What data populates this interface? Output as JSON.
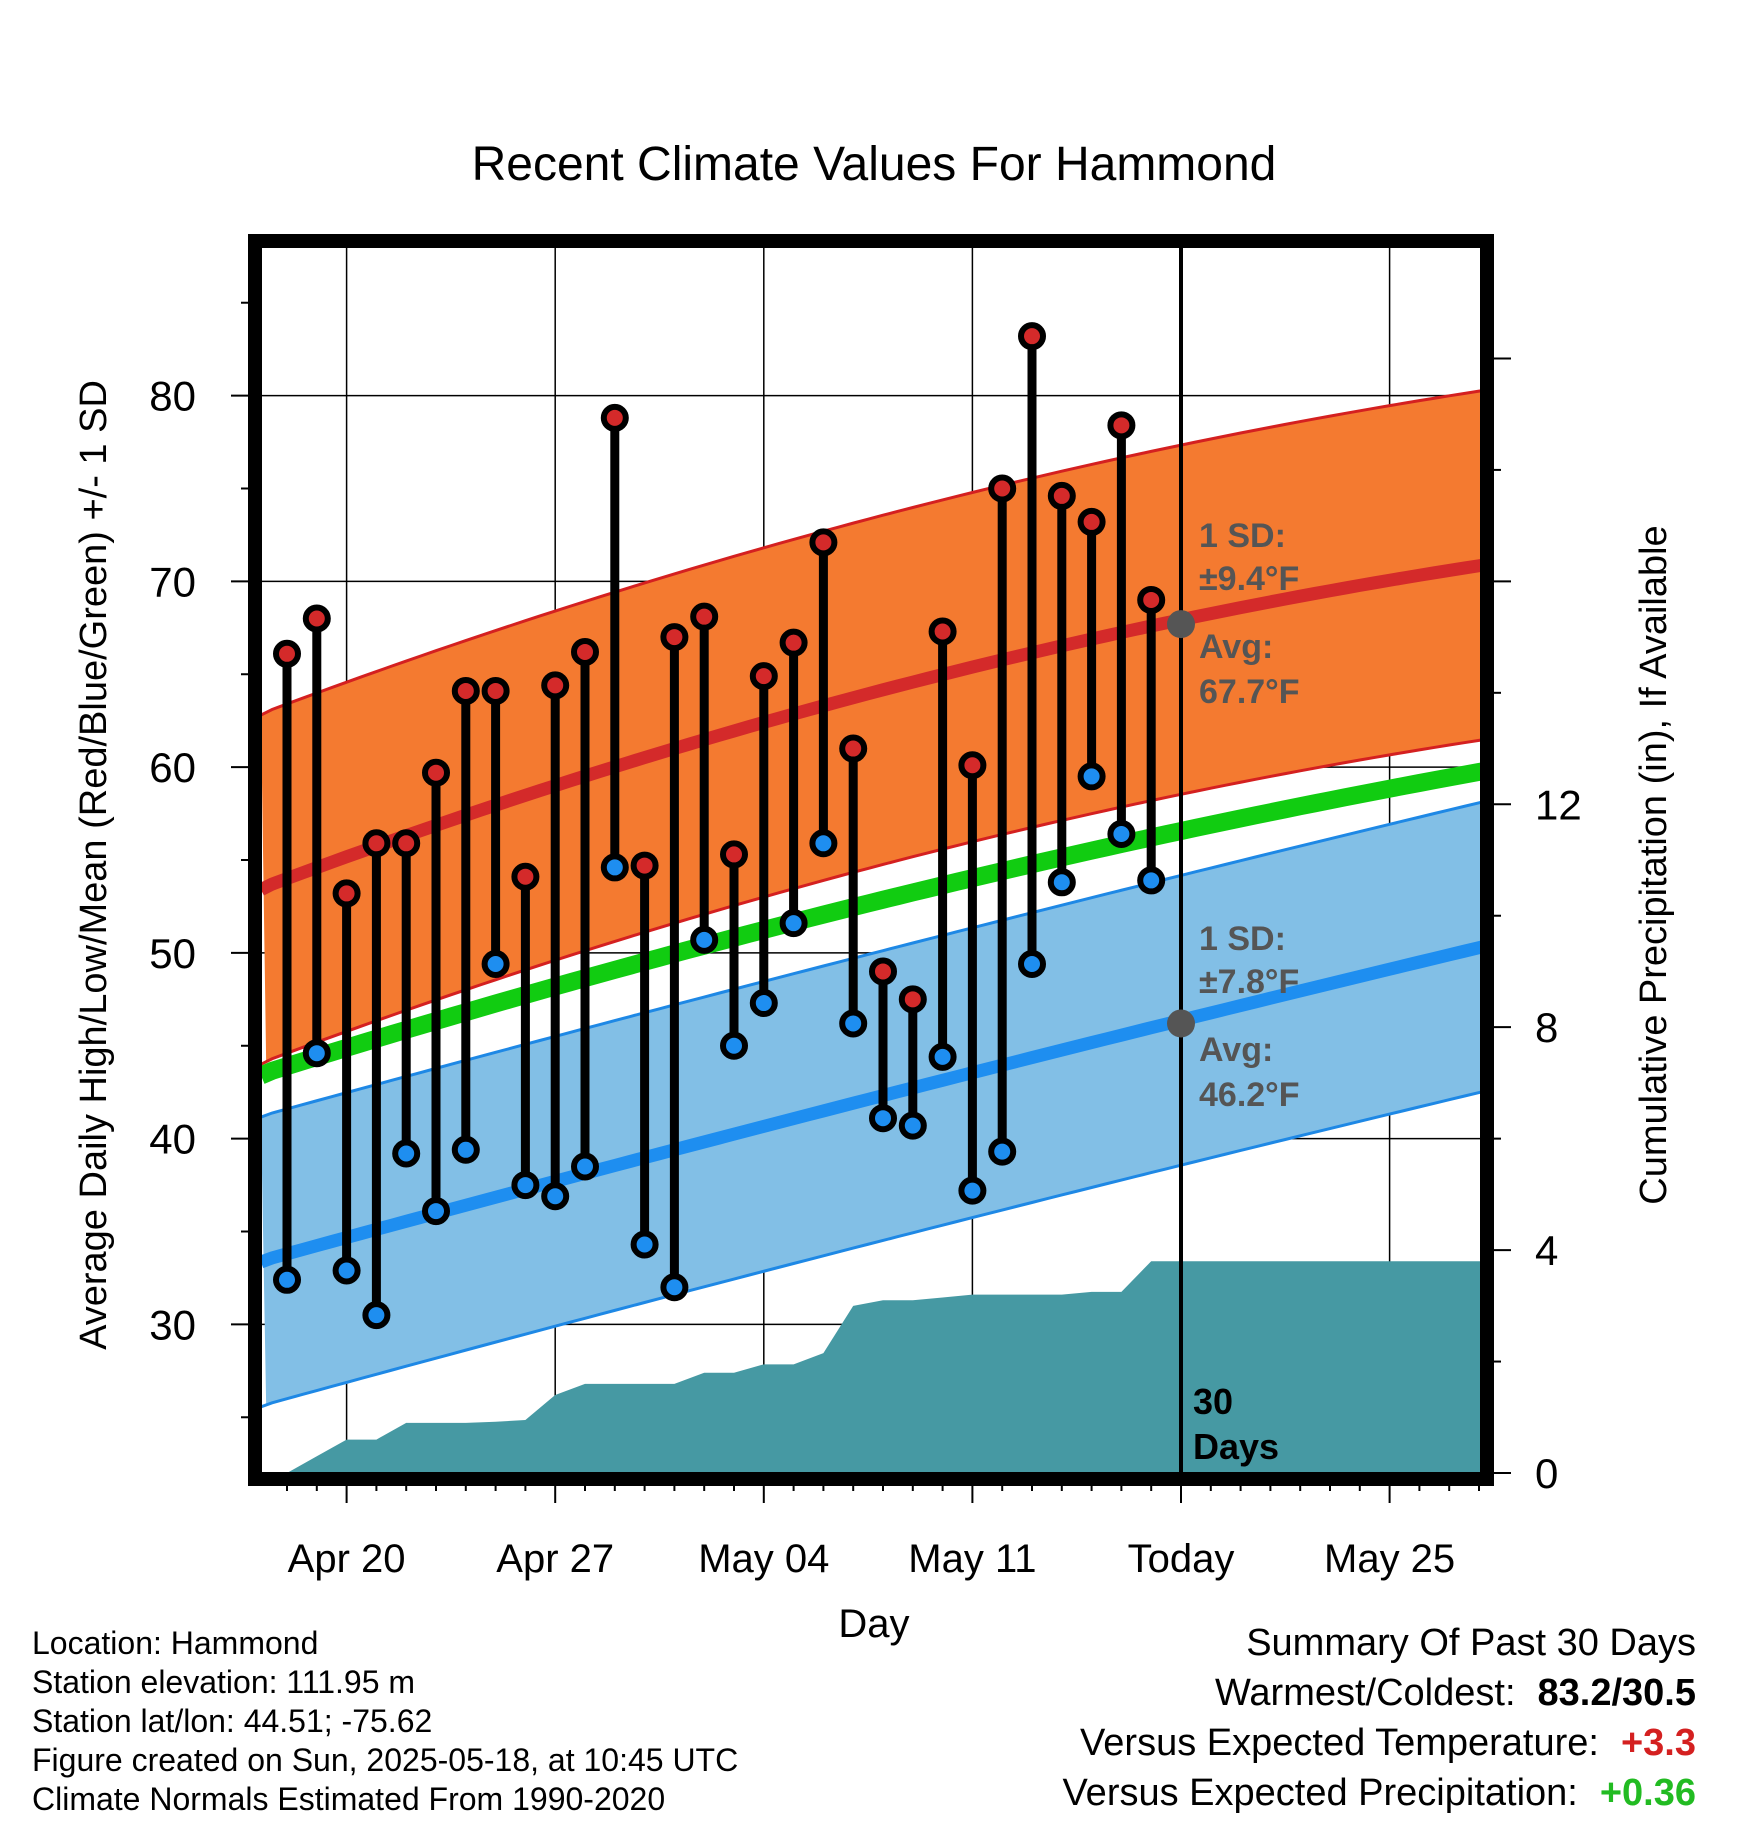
{
  "chart_data": {
    "type": "line",
    "title": "Recent Climate Values For Hammond",
    "xlabel": "Day",
    "ylabel": "Average Daily High/Low/Mean (Red/Blue/Green) +/- 1 SD",
    "y2label": "Cumulative Precipitation (in), If Available",
    "ylim": [
      22,
      88
    ],
    "y2lim": [
      0,
      22
    ],
    "yticks": [
      30,
      40,
      50,
      60,
      70,
      80
    ],
    "y2ticks": [
      0,
      4,
      8,
      12
    ],
    "x_tick_labels": [
      "Apr 20",
      "Apr 27",
      "May 04",
      "May 11",
      "Today",
      "May 25"
    ],
    "grid": true,
    "today_marker_label": "30 Days",
    "normal_high": {
      "avg_label": "Avg:",
      "avg_value": "67.7°F",
      "sd_label": "1 SD:",
      "sd_value": "±9.4°F",
      "avg": 67.7,
      "sd": 9.4
    },
    "normal_low": {
      "avg_label": "Avg:",
      "avg_value": "46.2°F",
      "sd_label": "1 SD:",
      "sd_value": "±7.8°F",
      "avg": 46.2,
      "sd": 7.8
    },
    "series": [
      {
        "name": "Daily High",
        "values": [
          66.1,
          68.0,
          53.2,
          55.9,
          55.9,
          59.7,
          64.1,
          64.1,
          54.1,
          64.4,
          66.2,
          78.8,
          54.7,
          67.0,
          68.1,
          55.3,
          64.9,
          66.7,
          72.1,
          61.0,
          49.0,
          47.5,
          67.3,
          60.1,
          75.0,
          83.2,
          74.6,
          73.2,
          78.4,
          69.0
        ]
      },
      {
        "name": "Daily Low",
        "values": [
          32.4,
          44.6,
          32.9,
          30.5,
          39.2,
          36.1,
          39.4,
          49.4,
          37.5,
          36.9,
          38.5,
          54.6,
          34.3,
          32.0,
          50.7,
          45.0,
          47.3,
          51.6,
          55.9,
          46.2,
          41.1,
          40.7,
          44.4,
          37.2,
          39.3,
          49.4,
          53.8,
          59.5,
          56.4,
          53.9
        ]
      },
      {
        "name": "Cumulative Precipitation",
        "values": [
          0.0,
          0.3,
          0.6,
          0.6,
          0.9,
          0.9,
          0.9,
          0.92,
          0.95,
          1.4,
          1.6,
          1.6,
          1.6,
          1.6,
          1.8,
          1.8,
          1.95,
          1.95,
          2.15,
          3.0,
          3.1,
          3.1,
          3.15,
          3.2,
          3.2,
          3.2,
          3.2,
          3.25,
          3.25,
          3.8,
          3.8
        ]
      }
    ]
  },
  "footer": {
    "location": "Location: Hammond",
    "elevation": "Station elevation: 111.95 m",
    "latlon": "Station lat/lon: 44.51; -75.62",
    "created": "Figure created on Sun, 2025-05-18, at 10:45 UTC",
    "normals": "Climate Normals Estimated From 1990-2020"
  },
  "summary": {
    "heading": "Summary Of Past 30 Days",
    "warm_label": "Warmest/Coldest:",
    "warm_value": "83.2/30.5",
    "temp_label": "Versus Expected Temperature:",
    "temp_value": "+3.3",
    "precip_label": "Versus Expected Precipitation:",
    "precip_value": "+0.36",
    "colors": {
      "temp": "#d42020",
      "precip": "#22bb22"
    }
  }
}
